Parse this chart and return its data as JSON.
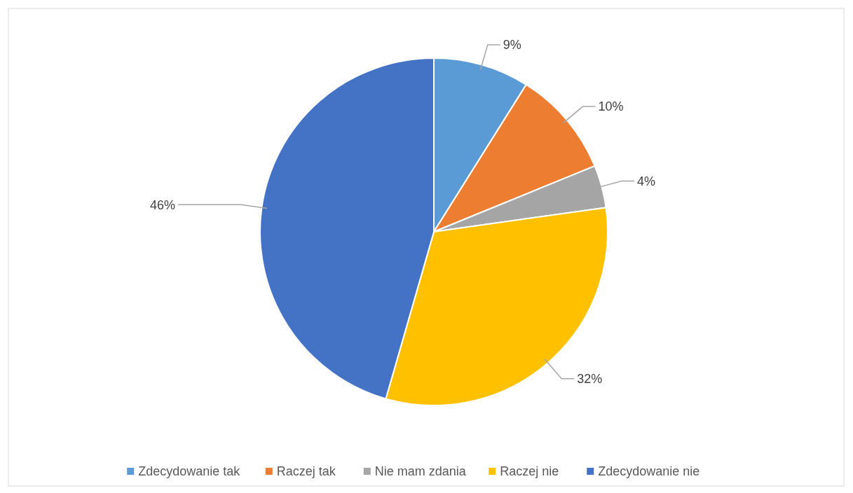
{
  "chart_data": {
    "type": "pie",
    "categories": [
      "Zdecydowanie tak",
      "Raczej tak",
      "Nie mam zdania",
      "Raczej nie",
      "Zdecydowanie nie"
    ],
    "values": [
      9,
      10,
      4,
      32,
      46
    ],
    "colors": [
      "#5b9bd5",
      "#ed7d31",
      "#a5a5a5",
      "#ffc000",
      "#4472c4"
    ],
    "value_labels": [
      "9%",
      "10%",
      "4%",
      "32%",
      "46%"
    ],
    "legend": "bottom"
  }
}
